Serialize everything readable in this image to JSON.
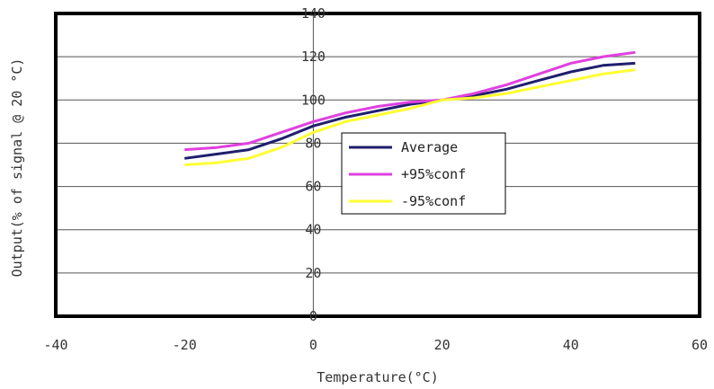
{
  "chart_data": {
    "type": "line",
    "title": "",
    "xlabel": "Temperature(°C)",
    "ylabel": "Output(% of signal @ 20 °C)",
    "xlim": [
      -40,
      60
    ],
    "ylim": [
      0,
      140
    ],
    "xticks": [
      -40,
      -20,
      0,
      20,
      40,
      60
    ],
    "yticks": [
      0,
      20,
      40,
      60,
      80,
      100,
      120,
      140
    ],
    "grid": "horizontal",
    "legend": "center",
    "x": [
      -20,
      -15,
      -10,
      -5,
      0,
      5,
      10,
      15,
      20,
      25,
      30,
      35,
      40,
      45,
      50
    ],
    "series": [
      {
        "name": "Average",
        "color": "#1f1f6e",
        "values": [
          73,
          75,
          77,
          82,
          88,
          92,
          95,
          98,
          100,
          102,
          105,
          109,
          113,
          116,
          117
        ]
      },
      {
        "name": "+95%conf",
        "color": "#e040e0",
        "values": [
          77,
          78,
          80,
          85,
          90,
          94,
          97,
          99,
          100,
          103,
          107,
          112,
          117,
          120,
          122
        ]
      },
      {
        "name": "-95%conf",
        "color": "#ffff33",
        "values": [
          70,
          71,
          73,
          78,
          85,
          90,
          93,
          96,
          100,
          101,
          103,
          106,
          109,
          112,
          114
        ]
      }
    ]
  }
}
